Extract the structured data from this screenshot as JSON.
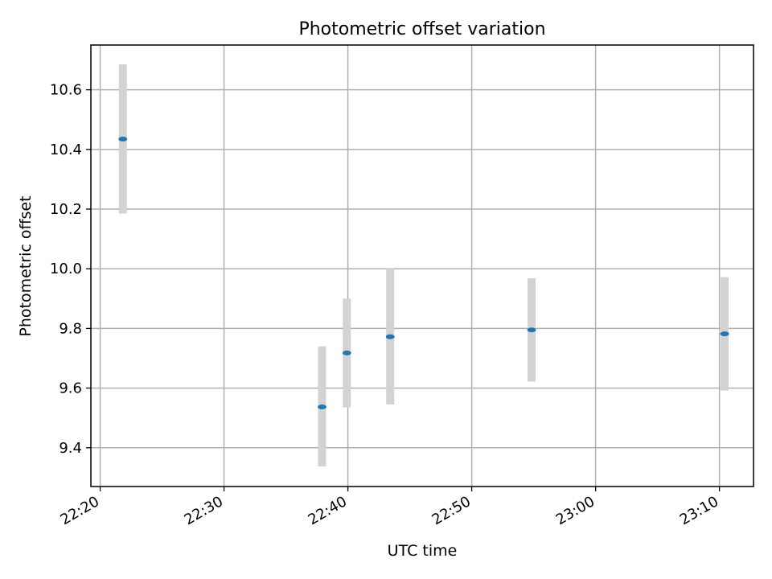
{
  "chart_data": {
    "type": "scatter",
    "title": "Photometric offset variation",
    "xlabel": "UTC time",
    "ylabel": "Photometric offset",
    "grid": true,
    "x_ticks": [
      "22:20",
      "22:30",
      "22:40",
      "22:50",
      "23:00",
      "23:10"
    ],
    "y_ticks": [
      "9.4",
      "9.6",
      "9.8",
      "10.0",
      "10.2",
      "10.4",
      "10.6"
    ],
    "xlim": [
      "22:19:15",
      "23:12:45"
    ],
    "ylim": [
      9.27,
      10.75
    ],
    "series": [
      {
        "x": [
          "22:21:50",
          "22:37:55",
          "22:39:55",
          "22:43:25",
          "22:54:50",
          "23:10:25"
        ],
        "y": [
          10.435,
          9.537,
          9.718,
          9.772,
          9.795,
          9.782
        ],
        "y_lower": [
          10.185,
          9.337,
          9.535,
          9.545,
          9.622,
          9.592
        ],
        "y_upper": [
          10.685,
          9.74,
          9.9,
          10.0,
          9.968,
          9.972
        ]
      }
    ],
    "colors": {
      "marker": "#1f77b4",
      "errorbar": "#d3d3d3",
      "grid": "#b0b0b0"
    }
  }
}
